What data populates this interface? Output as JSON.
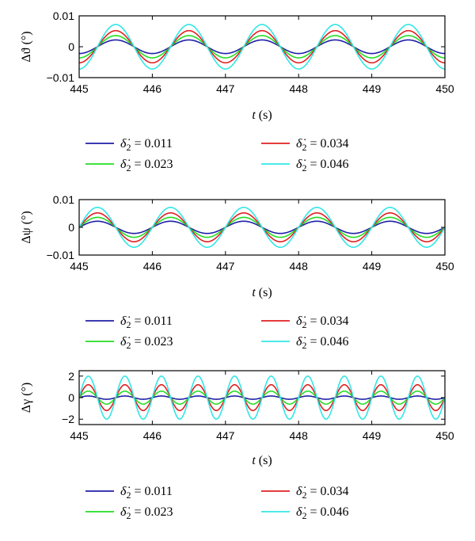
{
  "chart_data": [
    {
      "type": "line",
      "ylabel": "Δϑ (°)",
      "xlabel_var": "t",
      "xlabel_unit": "(s)",
      "xlim": [
        445,
        450
      ],
      "ylim": [
        -0.01,
        0.01
      ],
      "xticks": [
        "445",
        "446",
        "447",
        "448",
        "449",
        "450"
      ],
      "yticks": [
        "0.01",
        "0",
        "-0.01"
      ],
      "period": 1.0,
      "phase": 445.25,
      "series": [
        {
          "name": "0.011",
          "amplitude": 0.0022,
          "color": "#1f1fa8"
        },
        {
          "name": "0.023",
          "amplitude": 0.0036,
          "color": "#22dd22"
        },
        {
          "name": "0.034",
          "amplitude": 0.0052,
          "color": "#e02020"
        },
        {
          "name": "0.046",
          "amplitude": 0.0072,
          "color": "#33e6e6"
        }
      ],
      "legend_prefix": "δ̇",
      "legend_sub": "2",
      "legend_eq": "="
    },
    {
      "type": "line",
      "ylabel": "Δψ (°)",
      "xlabel_var": "t",
      "xlabel_unit": "(s)",
      "xlim": [
        445,
        450
      ],
      "ylim": [
        -0.01,
        0.01
      ],
      "xticks": [
        "445",
        "446",
        "447",
        "448",
        "449",
        "450"
      ],
      "yticks": [
        "0.01",
        "0",
        "-0.01"
      ],
      "period": 1.0,
      "phase": 445.0,
      "series": [
        {
          "name": "0.011",
          "amplitude": 0.0022,
          "color": "#1f1fa8"
        },
        {
          "name": "0.023",
          "amplitude": 0.0036,
          "color": "#22dd22"
        },
        {
          "name": "0.034",
          "amplitude": 0.0052,
          "color": "#e02020"
        },
        {
          "name": "0.046",
          "amplitude": 0.0072,
          "color": "#33e6e6"
        }
      ],
      "legend_prefix": "δ̇",
      "legend_sub": "2",
      "legend_eq": "="
    },
    {
      "type": "line",
      "ylabel": "Δγ (°)",
      "xlabel_var": "t",
      "xlabel_unit": "(s)",
      "xlim": [
        445,
        450
      ],
      "ylim": [
        -2.5,
        2.5
      ],
      "xticks": [
        "445",
        "446",
        "447",
        "448",
        "449",
        "450"
      ],
      "yticks": [
        "2",
        "0",
        "-2"
      ],
      "period": 0.5,
      "phase": 445.0,
      "series": [
        {
          "name": "0.011",
          "amplitude": 0.15,
          "color": "#1f1fa8"
        },
        {
          "name": "0.023",
          "amplitude": 0.6,
          "color": "#22dd22"
        },
        {
          "name": "0.034",
          "amplitude": 1.2,
          "color": "#e02020"
        },
        {
          "name": "0.046",
          "amplitude": 2.0,
          "color": "#33e6e6"
        }
      ],
      "legend_prefix": "δ̇",
      "legend_sub": "2",
      "legend_eq": "="
    }
  ]
}
